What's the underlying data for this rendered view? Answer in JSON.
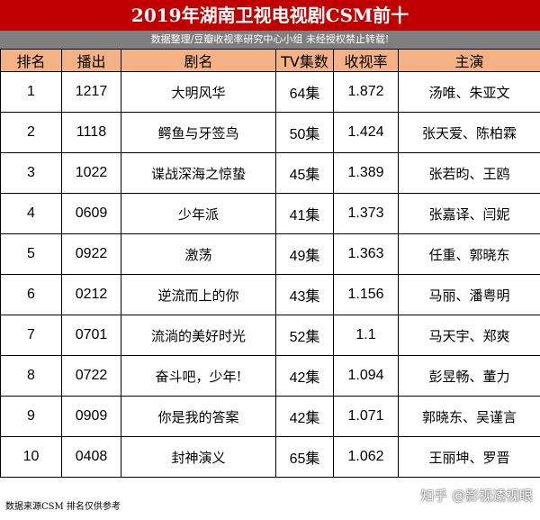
{
  "title": "2019年湖南卫视电视剧CSM前十",
  "subtitle": "数据整理/豆瓣收视率研究中心小组 未经授权禁止转载!",
  "headers": [
    "排名",
    "播出",
    "剧名",
    "TV集数",
    "收视率",
    "主演"
  ],
  "rows": [
    [
      "1",
      "1217",
      "大明风华",
      "64集",
      "1.872",
      "汤唯、朱亚文"
    ],
    [
      "2",
      "1118",
      "鳄鱼与牙签鸟",
      "50集",
      "1.424",
      "张天爱、陈柏霖"
    ],
    [
      "3",
      "1022",
      "谍战深海之惊蛰",
      "45集",
      "1.389",
      "张若昀、王鸥"
    ],
    [
      "4",
      "0609",
      "少年派",
      "41集",
      "1.373",
      "张嘉译、闫妮"
    ],
    [
      "5",
      "0922",
      "激荡",
      "49集",
      "1.363",
      "任重、郭晓东"
    ],
    [
      "6",
      "0212",
      "逆流而上的你",
      "43集",
      "1.156",
      "马丽、潘粤明"
    ],
    [
      "7",
      "0701",
      "流淌的美好时光",
      "52集",
      "1.1",
      "马天宇、郑爽"
    ],
    [
      "8",
      "0722",
      "奋斗吧，少年!",
      "42集",
      "1.094",
      "彭昱畅、董力"
    ],
    [
      "9",
      "0909",
      "你是我的答案",
      "42集",
      "1.071",
      "郭晓东、吴谨言"
    ],
    [
      "10",
      "0408",
      "封神演义",
      "65集",
      "1.062",
      "王丽坤、罗晋"
    ]
  ],
  "footer": "数据来源CSM 排名仅供参考",
  "watermark": "知乎 @影视透视眼",
  "colors": {
    "title_bg": "#c00000",
    "subtitle_bg": "#7f7f7f",
    "header_bg": "#f4b183"
  }
}
